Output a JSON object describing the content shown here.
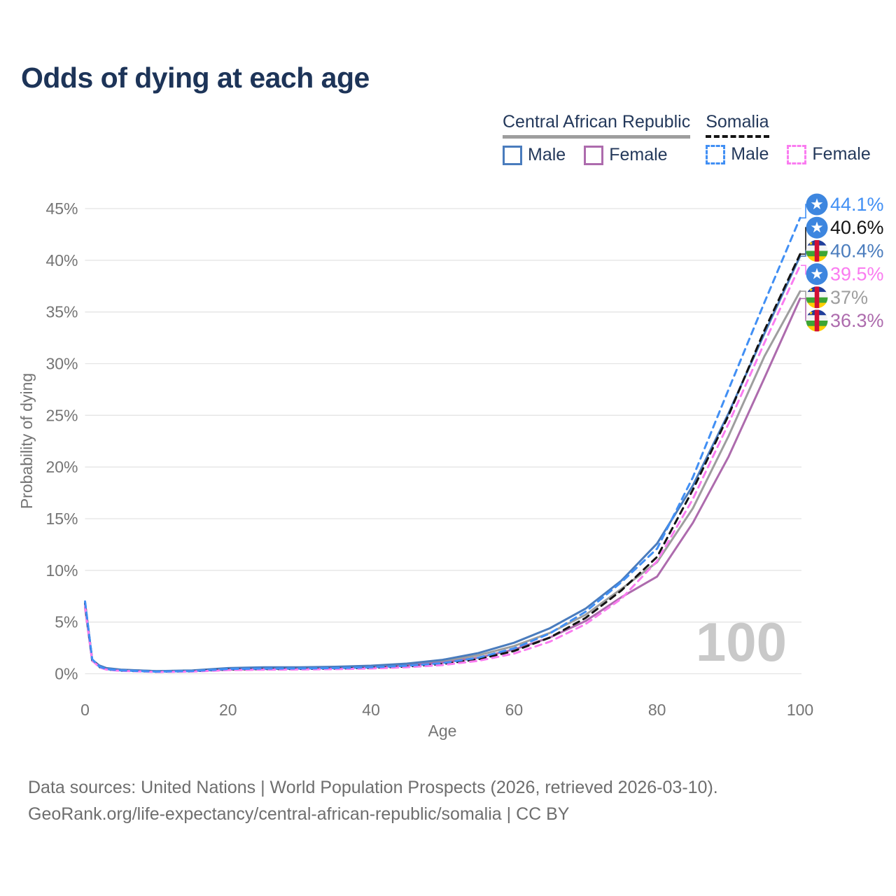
{
  "title": "Odds of dying at each age",
  "legend": {
    "groups": [
      {
        "label": "Central African Republic",
        "line_style": "solid",
        "line_color": "#9e9e9e",
        "items": [
          {
            "label": "Male",
            "color": "#4a7cbd",
            "dashed": false
          },
          {
            "label": "Female",
            "color": "#ad6bad",
            "dashed": false
          }
        ]
      },
      {
        "label": "Somalia",
        "line_style": "dashed",
        "line_color": "#141414",
        "items": [
          {
            "label": "Male",
            "color": "#418ff4",
            "dashed": true
          },
          {
            "label": "Female",
            "color": "#fa7cf0",
            "dashed": true
          }
        ]
      }
    ]
  },
  "chart_data": {
    "type": "line",
    "title": "Odds of dying at each age",
    "xlabel": "Age",
    "ylabel": "Probability of dying",
    "xlim": [
      0,
      100
    ],
    "ylim_percent": [
      0,
      45
    ],
    "x_ticks": [
      0,
      20,
      40,
      60,
      80,
      100
    ],
    "y_ticks_percent": [
      0,
      5,
      10,
      15,
      20,
      25,
      30,
      35,
      40,
      45
    ],
    "grid": "horizontal",
    "legend_position": "top-right",
    "watermark": "100",
    "x": [
      0,
      1,
      2,
      3,
      5,
      10,
      15,
      20,
      25,
      30,
      35,
      40,
      45,
      50,
      55,
      60,
      65,
      70,
      75,
      80,
      85,
      90,
      95,
      100
    ],
    "series": [
      {
        "id": "car-total",
        "name": "Central African Republic (both sexes)",
        "color": "#9e9e9e",
        "dash": "solid",
        "end_label": "37%",
        "flag": "car",
        "values": [
          6.65,
          1.3,
          0.76,
          0.52,
          0.38,
          0.25,
          0.3,
          0.48,
          0.54,
          0.57,
          0.62,
          0.72,
          0.9,
          1.22,
          1.78,
          2.68,
          3.95,
          5.7,
          8.2,
          10.8,
          16.0,
          23.0,
          30.7,
          37.0
        ]
      },
      {
        "id": "car-female",
        "name": "Central African Republic Female",
        "color": "#ad6bad",
        "dash": "solid",
        "end_label": "36.3%",
        "flag": "car",
        "values": [
          6.4,
          1.25,
          0.72,
          0.5,
          0.36,
          0.23,
          0.27,
          0.4,
          0.46,
          0.5,
          0.56,
          0.66,
          0.82,
          1.08,
          1.55,
          2.35,
          3.5,
          5.1,
          7.4,
          9.4,
          14.6,
          21.0,
          28.6,
          36.3
        ]
      },
      {
        "id": "car-male",
        "name": "Central African Republic Male",
        "color": "#4a7cbd",
        "dash": "solid",
        "end_label": "40.4%",
        "flag": "car",
        "values": [
          6.9,
          1.35,
          0.8,
          0.55,
          0.4,
          0.26,
          0.32,
          0.55,
          0.62,
          0.63,
          0.68,
          0.78,
          0.98,
          1.35,
          2.0,
          3.0,
          4.4,
          6.3,
          9.0,
          12.6,
          18.2,
          25.2,
          32.9,
          40.4
        ]
      },
      {
        "id": "somalia-total",
        "name": "Somalia (both sexes)",
        "color": "#141414",
        "dash": "dashed",
        "end_label": "40.6%",
        "flag": "som",
        "values": [
          6.8,
          1.35,
          0.66,
          0.42,
          0.3,
          0.19,
          0.24,
          0.41,
          0.45,
          0.46,
          0.5,
          0.57,
          0.7,
          0.94,
          1.4,
          2.2,
          3.5,
          5.4,
          8.05,
          11.3,
          17.8,
          25.0,
          33.2,
          40.6
        ]
      },
      {
        "id": "somalia-female",
        "name": "Somalia Female",
        "color": "#fa7cf0",
        "dash": "dashed",
        "end_label": "39.5%",
        "flag": "som",
        "values": [
          6.6,
          1.3,
          0.62,
          0.4,
          0.28,
          0.17,
          0.21,
          0.35,
          0.39,
          0.41,
          0.45,
          0.51,
          0.63,
          0.84,
          1.25,
          1.95,
          3.1,
          4.8,
          7.25,
          10.9,
          16.9,
          24.2,
          32.0,
          39.5
        ]
      },
      {
        "id": "somalia-male",
        "name": "Somalia Male",
        "color": "#418ff4",
        "dash": "dashed",
        "end_label": "44.1%",
        "flag": "som",
        "values": [
          7.0,
          1.4,
          0.7,
          0.45,
          0.32,
          0.2,
          0.26,
          0.46,
          0.5,
          0.51,
          0.55,
          0.62,
          0.77,
          1.03,
          1.55,
          2.45,
          3.9,
          6.0,
          8.85,
          12.1,
          19.0,
          27.5,
          35.9,
          44.1
        ]
      }
    ]
  },
  "footer": {
    "line1": "Data sources: United Nations | World Population Prospects (2026, retrieved 2026-03-10).",
    "line2": "GeoRank.org/life-expectancy/central-african-republic/somalia | CC BY"
  }
}
